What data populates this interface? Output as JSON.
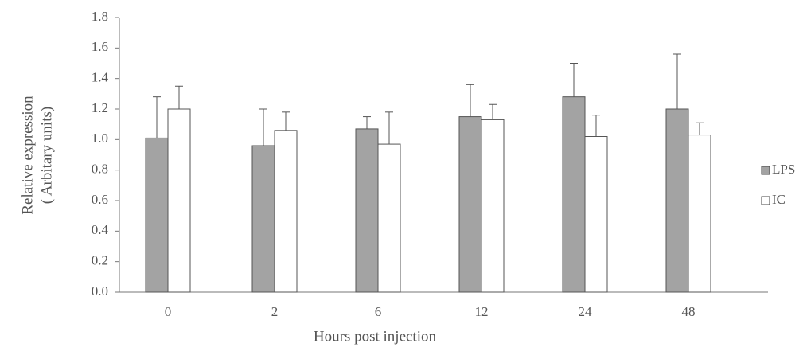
{
  "chart_data": {
    "type": "bar",
    "y_label": [
      "Relative expression",
      "( Arbitary units)"
    ],
    "x_label": "Hours post injection",
    "categories": [
      "0",
      "2",
      "6",
      "12",
      "24",
      "48"
    ],
    "series": [
      {
        "name": "LPS",
        "color": "#a3a3a3",
        "values": [
          1.01,
          0.96,
          1.07,
          1.15,
          1.28,
          1.2
        ],
        "errors": [
          0.27,
          0.24,
          0.08,
          0.21,
          0.22,
          0.36
        ]
      },
      {
        "name": "IC",
        "color": "#ffffff",
        "values": [
          1.2,
          1.06,
          0.97,
          1.13,
          1.02,
          1.03
        ],
        "errors": [
          0.15,
          0.12,
          0.21,
          0.1,
          0.14,
          0.08
        ]
      }
    ],
    "ylim": [
      0,
      1.8
    ],
    "yticks": [
      {
        "value": 0,
        "label": "0.0"
      },
      0.2,
      0.4,
      0.6,
      0.8,
      {
        "value": 1,
        "label": "1.0"
      },
      1.2,
      1.4,
      1.6,
      1.8
    ],
    "error_bars": "up",
    "legend": "right"
  }
}
